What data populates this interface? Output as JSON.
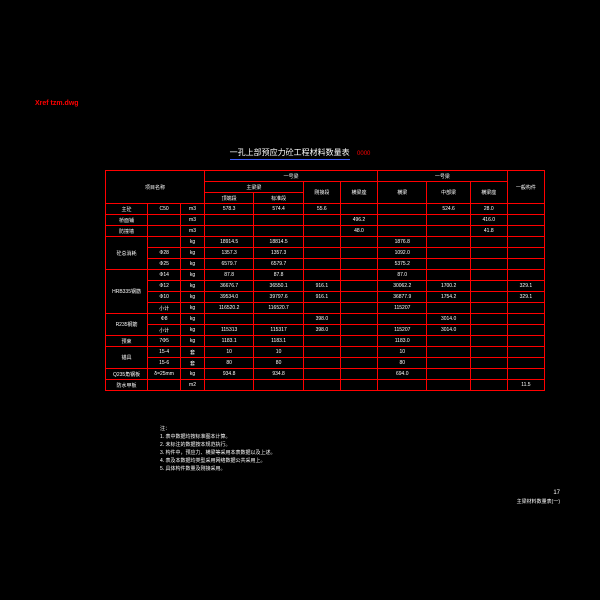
{
  "colors": {
    "background": "#000000",
    "border": "#ff0000",
    "text": "#ffffff",
    "filename": "#ff0000",
    "underline": "#4060ff",
    "suffix": "#ff0000"
  },
  "filename": "Xref tzm.dwg",
  "title": "一孔上部预应力砼工程材料数量表",
  "title_suffix": "0000",
  "headers": {
    "item": "项目名称",
    "grp1": "一号梁",
    "grp2": "一号梁",
    "sub1": "主梁梁",
    "sub1a": "顶端段",
    "sub1b": "标准段",
    "sub2": "刚接段",
    "sub3": "横梁座",
    "sub4": "横梁",
    "sub5": "中部梁",
    "sub6": "横梁座",
    "last": "一般构件"
  },
  "rows": [
    {
      "h1": "主砼",
      "h2": "C50",
      "h3": "m3",
      "c": [
        "578.3",
        "574.4",
        "55.6",
        "",
        "",
        "524.6",
        "28.0",
        ""
      ]
    },
    {
      "h1": "桥面铺",
      "h2": "",
      "h3": "m3",
      "c": [
        "",
        "",
        "",
        "496.2",
        "",
        "",
        "416.0",
        ""
      ]
    },
    {
      "h1": "防撞墙",
      "h2": "",
      "h3": "m3",
      "c": [
        "",
        "",
        "",
        "48.0",
        "",
        "",
        "41.8",
        ""
      ]
    },
    {
      "h1": "砼总消耗",
      "h2": "",
      "h3": "kg",
      "c": [
        "18914.5",
        "18814.5",
        "",
        "",
        "1876.8",
        "",
        "",
        ""
      ]
    },
    {
      "h1": "",
      "h2": "Φ28",
      "h3": "kg",
      "c": [
        "1357.3",
        "1357.3",
        "",
        "",
        "1092.0",
        "",
        "",
        ""
      ]
    },
    {
      "h1": "",
      "h2": "Φ25",
      "h3": "kg",
      "c": [
        "6579.7",
        "6579.7",
        "",
        "",
        "5375.2",
        "",
        "",
        ""
      ]
    },
    {
      "h1": "HRB335钢筋",
      "h2": "Φ14",
      "h3": "kg",
      "c": [
        "87.8",
        "87.8",
        "",
        "",
        "87.0",
        "",
        "",
        ""
      ]
    },
    {
      "h1": "",
      "h2": "Φ12",
      "h3": "kg",
      "c": [
        "36676.7",
        "36550.1",
        "916.1",
        "",
        "30062.2",
        "1700.2",
        "",
        "329.1"
      ]
    },
    {
      "h1": "",
      "h2": "Φ10",
      "h3": "kg",
      "c": [
        "39534.0",
        "39797.6",
        "916.1",
        "",
        "36877.9",
        "1754.2",
        "",
        "329.1"
      ]
    },
    {
      "h1": "",
      "h2": "小计",
      "h3": "kg",
      "c": [
        "116520.2",
        "116520.7",
        "",
        "",
        "115207",
        "",
        "",
        ""
      ]
    },
    {
      "h1": "R235钢筋",
      "h2": "Φ8",
      "h3": "kg",
      "c": [
        "",
        "",
        "398.0",
        "",
        "",
        "3014.0",
        "",
        ""
      ]
    },
    {
      "h1": "",
      "h2": "小计",
      "h3": "kg",
      "c": [
        "115313",
        "115317",
        "398.0",
        "",
        "115207",
        "3014.0",
        "",
        ""
      ]
    },
    {
      "h1": "预束",
      "h2": "7Φ5",
      "h3": "kg",
      "c": [
        "1183.1",
        "1183.1",
        "",
        "",
        "1183.0",
        "",
        "",
        ""
      ]
    },
    {
      "h1": "锚具",
      "h2": "15-4",
      "h3": "套",
      "c": [
        "10",
        "10",
        "",
        "",
        "10",
        "",
        "",
        ""
      ]
    },
    {
      "h1": "",
      "h2": "15-6",
      "h3": "套",
      "c": [
        "80",
        "80",
        "",
        "",
        "80",
        "",
        "",
        ""
      ]
    },
    {
      "h1": "Q235角钢板",
      "h2": "δ=25mm",
      "h3": "kg",
      "c": [
        "934.8",
        "934.8",
        "",
        "",
        "694.0",
        "",
        "",
        ""
      ]
    },
    {
      "h1": "防水甲板",
      "h2": "",
      "h3": "m2",
      "c": [
        "",
        "",
        "",
        "",
        "",
        "",
        "",
        "11.5"
      ]
    }
  ],
  "notes_header": "注：",
  "notes": [
    "1. 表中数据均按标准图本计算。",
    "2. 未标注的数据按本规范执行。",
    "3. 构件中，预应力、横梁等采用本表数据以及上述。",
    "4. 表及本数据均类型采用网络数据公共采用上。",
    "5. 具体构件数量及刚接采用。"
  ],
  "titleblock": {
    "page": "17",
    "label": "主梁材料数量表(一)"
  }
}
